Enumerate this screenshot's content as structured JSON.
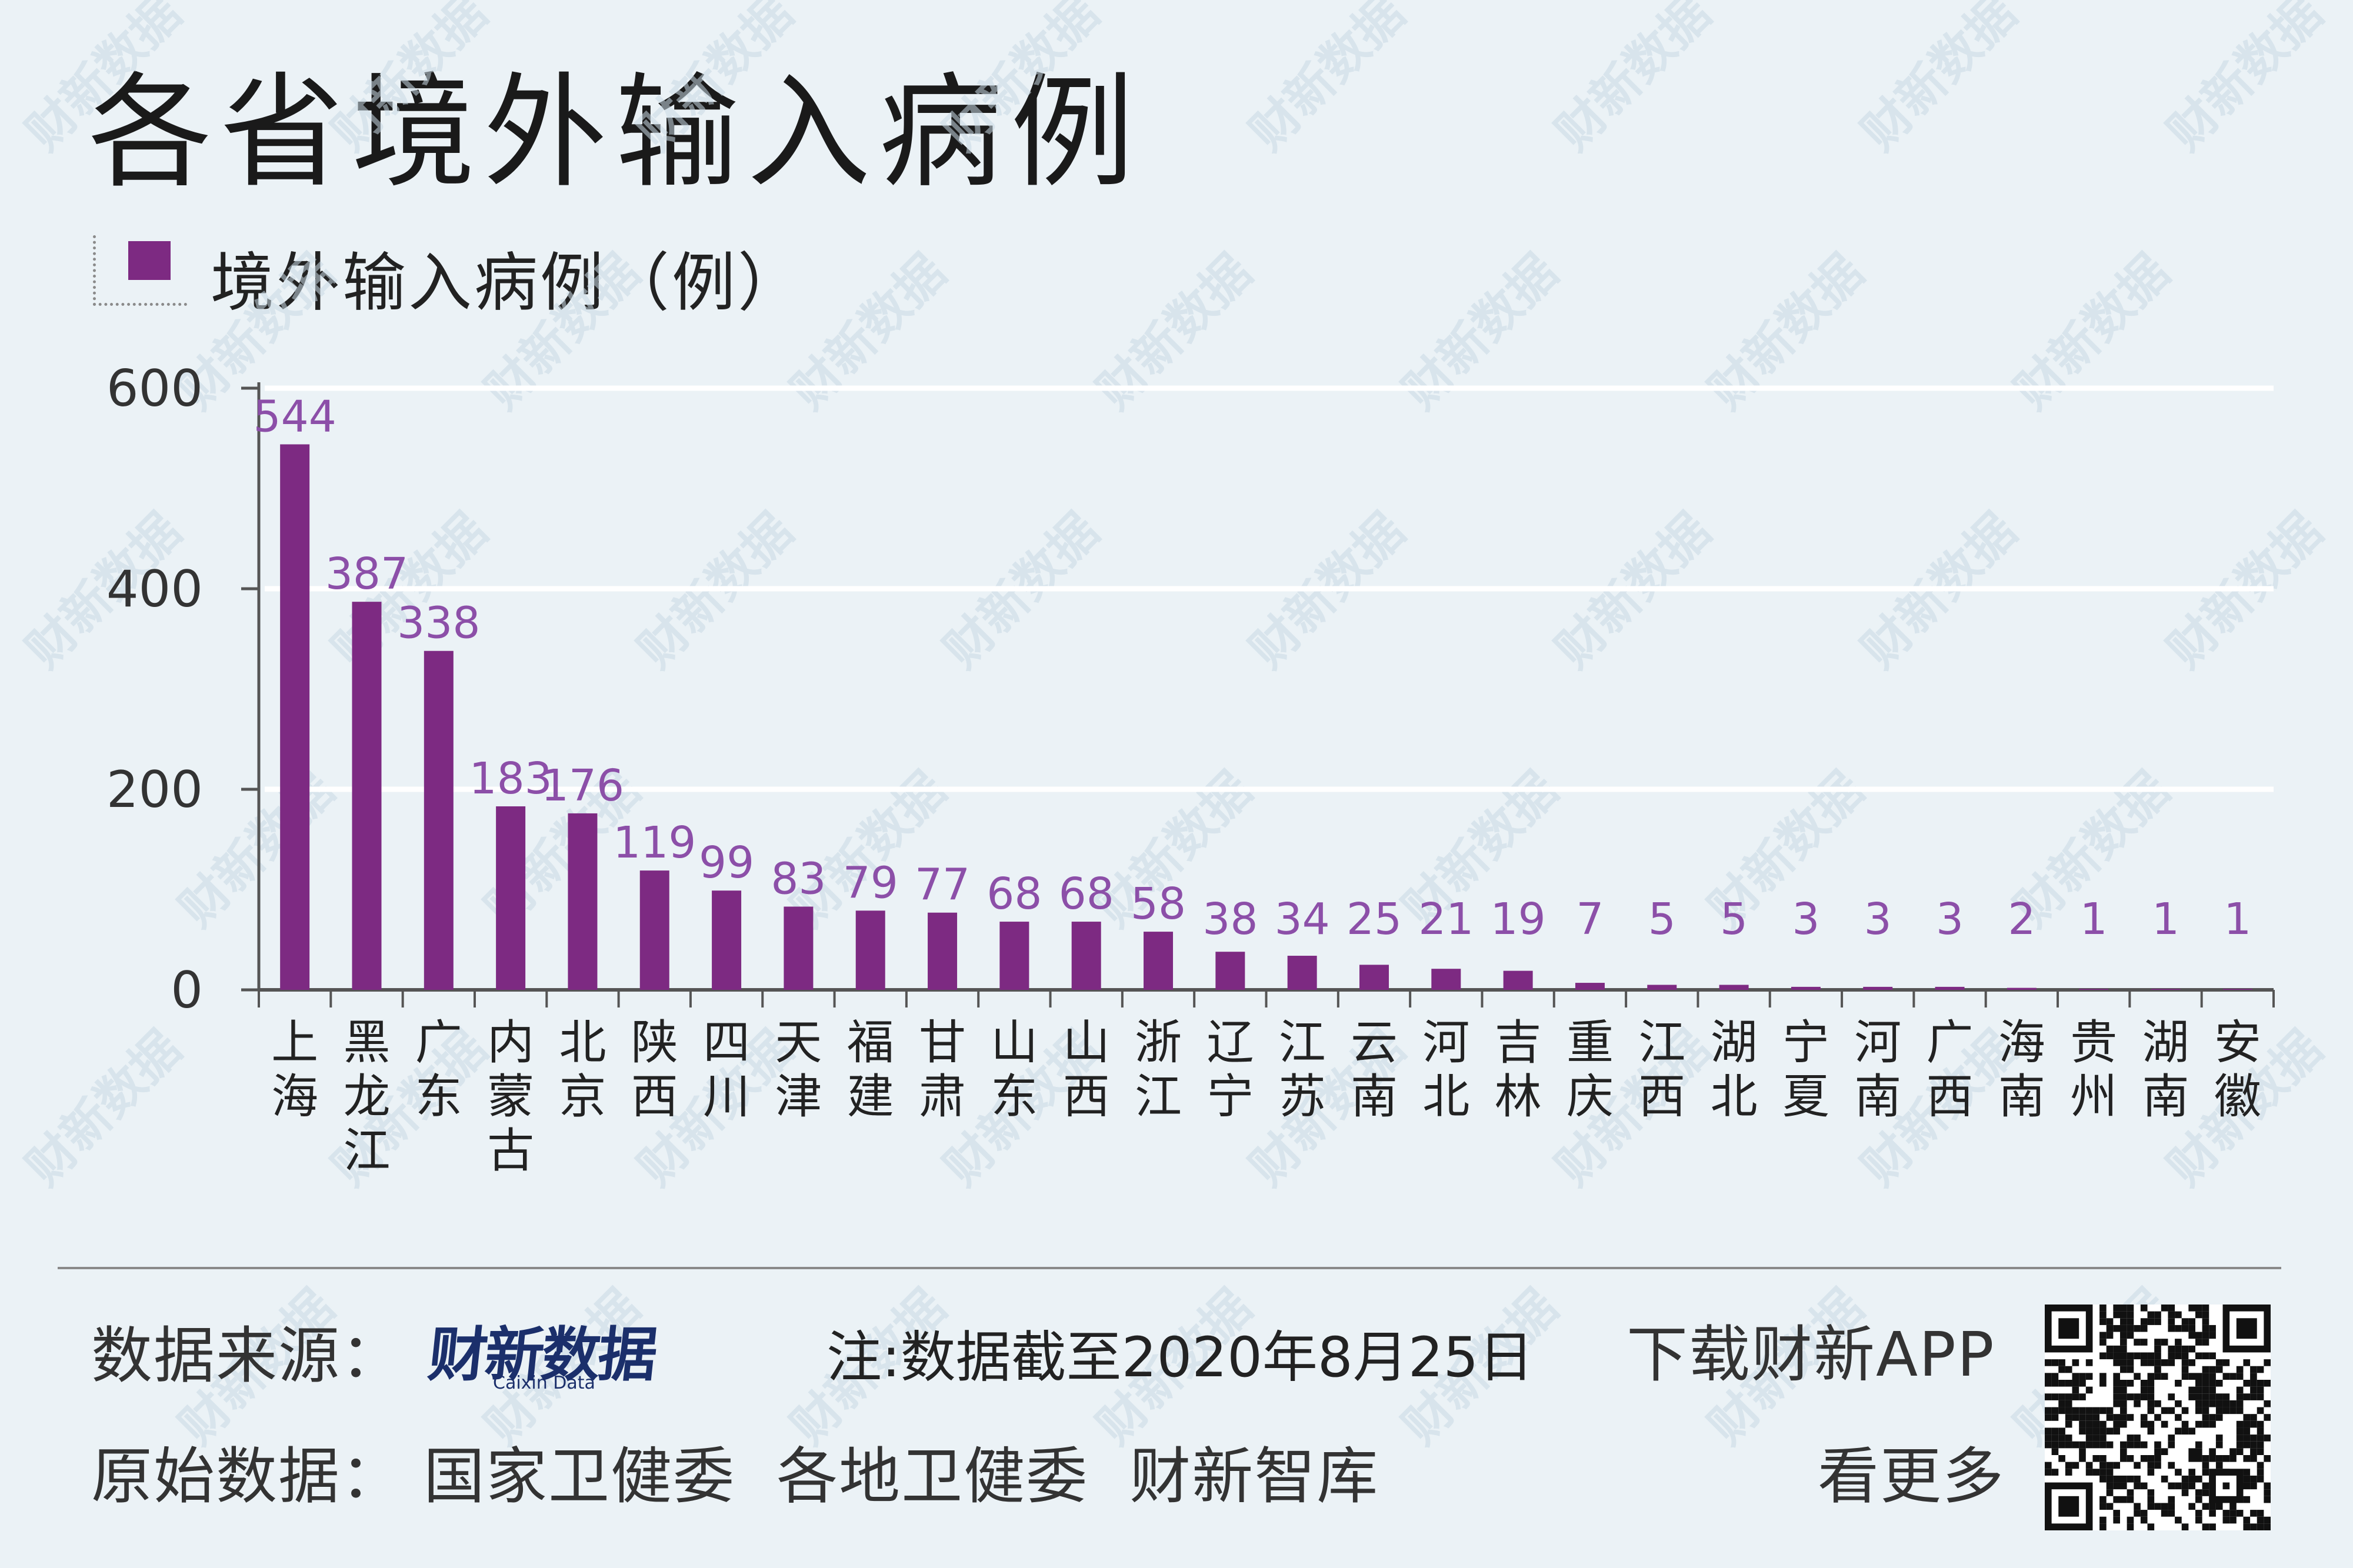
{
  "title": "各省境外输入病例",
  "colors": {
    "bar": "#7d2a82",
    "data_label": "#8c4fa8",
    "axis": "#555555",
    "grid": "#ffffff",
    "background": "#ebf2f6"
  },
  "chart_data": {
    "type": "bar",
    "title": "各省境外输入病例",
    "legend": "境外输入病例（例）",
    "xlabel": "",
    "ylabel": "",
    "ylim": [
      0,
      600
    ],
    "yticks": [
      0,
      200,
      400,
      600
    ],
    "grid": true,
    "categories": [
      "上海",
      "黑龙江",
      "广东",
      "内蒙古",
      "北京",
      "陕西",
      "四川",
      "天津",
      "福建",
      "甘肃",
      "山东",
      "山西",
      "浙江",
      "辽宁",
      "江苏",
      "云南",
      "河北",
      "吉林",
      "重庆",
      "江西",
      "湖北",
      "宁夏",
      "河南",
      "广西",
      "海南",
      "贵州",
      "湖南",
      "安徽"
    ],
    "values": [
      544,
      387,
      338,
      183,
      176,
      119,
      99,
      83,
      79,
      77,
      68,
      68,
      58,
      38,
      34,
      25,
      21,
      19,
      7,
      5,
      5,
      3,
      3,
      3,
      2,
      1,
      1,
      1
    ]
  },
  "footer": {
    "source_label": "数据来源：",
    "source_logo": "财新数据",
    "source_logo_sub": "Caixin Data",
    "note": "注:数据截至2020年8月25日",
    "app_line1": "下载财新APP",
    "app_line2": "看更多",
    "origin_label": "原始数据：",
    "origin_sources": "国家卫健委  各地卫健委  财新智库"
  },
  "watermark": "财新数据"
}
